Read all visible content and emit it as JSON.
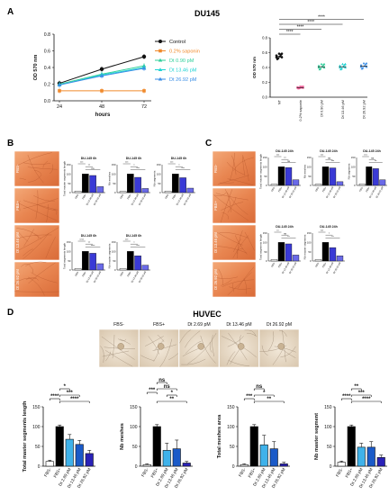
{
  "figure": {
    "panel_a": {
      "letter": "A",
      "title": "DU145",
      "line_chart": {
        "ylabel": "OD 570 nm",
        "xlabel": "hours",
        "x": [
          24,
          48,
          72
        ],
        "y_ticks": [
          "0.0",
          "0.2",
          "0.4",
          "0.6",
          "0.8"
        ],
        "ylim": [
          0,
          0.8
        ],
        "series": [
          {
            "name": "Control",
            "color": "#111111",
            "values": [
              0.21,
              0.38,
              0.53
            ]
          },
          {
            "name": "0.2% saponin",
            "color": "#f08a2c",
            "values": [
              0.12,
              0.12,
              0.12
            ]
          },
          {
            "name": "Dt 0.90 pM",
            "color": "#2fcf9a",
            "values": [
              0.2,
              0.32,
              0.42
            ]
          },
          {
            "name": "Dt 13.46 pM",
            "color": "#20d3d3",
            "values": [
              0.19,
              0.31,
              0.4
            ]
          },
          {
            "name": "Dt 26.92 pM",
            "color": "#3a8ee6",
            "values": [
              0.19,
              0.3,
              0.39
            ]
          }
        ]
      },
      "dot_chart": {
        "ylabel": "OD 570 nm",
        "y_ticks": [
          "0.0",
          "0.2",
          "0.4",
          "0.6",
          "0.8"
        ],
        "categories": [
          "NT",
          "0.2% saponin",
          "Dt 0.90 pM",
          "Dt 13.46 pM",
          "Dt 26.92 pM"
        ],
        "means": [
          0.55,
          0.13,
          0.41,
          0.41,
          0.42
        ],
        "colors": [
          "#111111",
          "#f2609a",
          "#2fcf9a",
          "#20d3d3",
          "#3a8ee6"
        ],
        "sig": [
          "****",
          "****",
          "****",
          "****"
        ]
      }
    },
    "panel_b": {
      "letter": "B",
      "micrograph_labels": [
        "FBS-",
        "FBS+",
        "Dt 13.46 pM",
        "Dt 26.92 pM"
      ],
      "charts": [
        {
          "title": "DU-145 6h",
          "ylabel": "Total master segments length",
          "values": [
            8,
            100,
            92,
            32
          ],
          "sig": [
            "***",
            "**",
            "ns"
          ]
        },
        {
          "title": "DU-145 6h",
          "ylabel": "Nb meshes",
          "values": [
            6,
            100,
            82,
            22
          ],
          "sig": [
            "***",
            "*",
            "***"
          ]
        },
        {
          "title": "DU-145 6h",
          "ylabel": "Nb segments",
          "values": [
            8,
            100,
            80,
            24
          ],
          "sig": [
            "***",
            "*",
            "***"
          ]
        },
        {
          "title": "DU-145 6h",
          "ylabel": "Total segments length",
          "values": [
            8,
            100,
            90,
            34
          ],
          "sig": [
            "****",
            "**",
            "****"
          ]
        },
        {
          "title": "DU-145 6h",
          "ylabel": "Nb master segments",
          "values": [
            8,
            100,
            76,
            26
          ],
          "sig": [
            "***",
            "*",
            "***"
          ]
        }
      ],
      "categories": [
        "FBS-",
        "FBS+",
        "Dt 13.46 pM",
        "Dt 26.92 pM"
      ]
    },
    "panel_c": {
      "letter": "C",
      "micrograph_labels": [
        "FBS-",
        "FBS+",
        "Dt 13.46 pM",
        "Dt 26.92 pM"
      ],
      "charts": [
        {
          "title": "DU-145 24h",
          "ylabel": "Total master segments length",
          "values": [
            6,
            100,
            96,
            30
          ],
          "sig": [
            "***",
            "**",
            "ns"
          ]
        },
        {
          "title": "DU-145 24h",
          "ylabel": "Nb meshes",
          "values": [
            6,
            100,
            94,
            20
          ],
          "sig": [
            "***",
            "ns",
            "***"
          ]
        },
        {
          "title": "DU-145 24h",
          "ylabel": "Nb segments",
          "values": [
            8,
            100,
            90,
            30
          ],
          "sig": [
            "***",
            "ns",
            "**"
          ]
        },
        {
          "title": "DU-145 24h",
          "ylabel": "Total segments length",
          "values": [
            8,
            100,
            92,
            32
          ],
          "sig": [
            "**",
            "ns",
            "**"
          ]
        },
        {
          "title": "DU-145 24h",
          "ylabel": "Nb master segments",
          "values": [
            8,
            100,
            72,
            28
          ],
          "sig": [
            "***",
            "*",
            "**"
          ]
        }
      ],
      "categories": [
        "FBS-",
        "FBS+",
        "Dt 13.46 pM",
        "Dt 26.92 pM"
      ]
    },
    "panel_d": {
      "letter": "D",
      "title": "HUVEC",
      "micrograph_labels": [
        "FBS-",
        "FBS+",
        "Dt 2.69 pM",
        "Dt 13.46 pM",
        "Dt 26.92 pM"
      ],
      "categories": [
        "FBS-",
        "FBS+",
        "Dt 2.69 pM",
        "Dt 13.46 pM",
        "Dt 26.92 pM"
      ],
      "y_ticks": [
        "0",
        "50",
        "100",
        "150"
      ],
      "charts": [
        {
          "ylabel": "Total master segments length",
          "values": [
            12,
            100,
            68,
            55,
            32
          ],
          "errors": [
            3,
            4,
            12,
            10,
            8
          ],
          "sig": [
            {
              "a": 0,
              "b": 1,
              "text": "****"
            },
            {
              "a": 1,
              "b": 2,
              "text": "*"
            },
            {
              "a": 1,
              "b": 3,
              "text": "***"
            },
            {
              "a": 1,
              "b": 4,
              "text": "****"
            }
          ]
        },
        {
          "ylabel": "Nb meshes",
          "values": [
            4,
            100,
            40,
            44,
            8
          ],
          "errors": [
            2,
            5,
            18,
            22,
            4
          ],
          "sig": [
            {
              "a": 0,
              "b": 1,
              "text": "***"
            },
            {
              "a": 1,
              "b": 2,
              "text": "ns"
            },
            {
              "a": 1,
              "b": 3,
              "text": "ns"
            },
            {
              "a": 2,
              "b": 3,
              "text": "*"
            },
            {
              "a": 1,
              "b": 4,
              "text": "**"
            }
          ]
        },
        {
          "ylabel": "Total meshes area",
          "values": [
            4,
            100,
            54,
            44,
            6
          ],
          "errors": [
            2,
            5,
            24,
            18,
            4
          ],
          "sig": [
            {
              "a": 0,
              "b": 1,
              "text": "***"
            },
            {
              "a": 1,
              "b": 2,
              "text": "ns"
            },
            {
              "a": 1,
              "b": 3,
              "text": "*"
            },
            {
              "a": 1,
              "b": 4,
              "text": "**"
            }
          ]
        },
        {
          "ylabel": "Nb master segment",
          "values": [
            10,
            100,
            48,
            48,
            22
          ],
          "errors": [
            3,
            4,
            10,
            14,
            6
          ],
          "sig": [
            {
              "a": 0,
              "b": 1,
              "text": "****"
            },
            {
              "a": 1,
              "b": 2,
              "text": "**"
            },
            {
              "a": 1,
              "b": 3,
              "text": "***"
            },
            {
              "a": 1,
              "b": 4,
              "text": "****"
            }
          ]
        }
      ],
      "colors": [
        "#ffffff",
        "#000000",
        "#3fb2ea",
        "#1a5ac8",
        "#2a22b8"
      ]
    }
  }
}
